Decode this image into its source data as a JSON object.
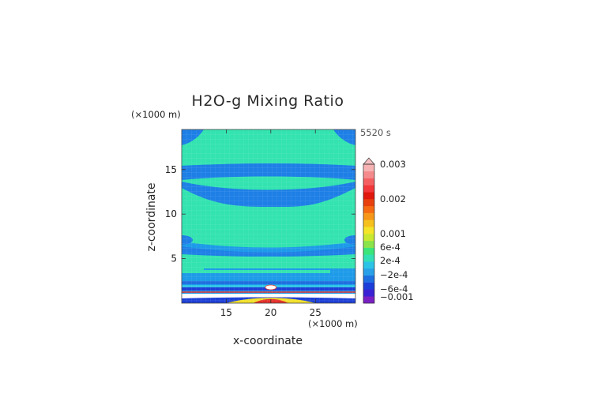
{
  "chart_data": {
    "type": "heatmap",
    "title": "H2O-g Mixing Ratio",
    "time_label": "5520 s",
    "xlabel": "x-coordinate",
    "ylabel": "z-coordinate",
    "x_units": "(×1000 m)",
    "y_units": "(×1000 m)",
    "xlim": [
      10,
      29.5
    ],
    "ylim": [
      0,
      19.5
    ],
    "x_ticks": [
      15,
      20,
      25
    ],
    "y_ticks": [
      5,
      10,
      15
    ],
    "colorbar": {
      "tick_labels": [
        {
          "value": 0.003,
          "label": "0.003"
        },
        {
          "value": 0.002,
          "label": "0.002"
        },
        {
          "value": 0.001,
          "label": "0.001"
        },
        {
          "value": 0.0006,
          "label": "6e-4"
        },
        {
          "value": 0.0002,
          "label": "2e-4"
        },
        {
          "value": -0.0002,
          "label": "−2e-4"
        },
        {
          "value": -0.0006,
          "label": "−6e-4"
        },
        {
          "value": -0.001,
          "label": "−0.001"
        }
      ],
      "bands": [
        "#7a1fc4",
        "#3a22d4",
        "#1b3ed8",
        "#1e6fe0",
        "#2aa0e8",
        "#2cc3e6",
        "#32e0b4",
        "#3be57a",
        "#8be34a",
        "#c9e832",
        "#f4e42a",
        "#f6c11e",
        "#f7971a",
        "#f56a12",
        "#e8400e",
        "#e0180e",
        "#f2383a",
        "#f46062",
        "#f58a8c",
        "#f7b2b4"
      ],
      "extend_top_color": "#f7c0c2"
    },
    "field_colors": {
      "background": "#1e9be8",
      "band_light": "#33e3b0",
      "band_dark": "#1e7fe6",
      "surface_white": "#ffffff",
      "surface_red": "#e3302a",
      "surface_yellow": "#f2e02a",
      "surface_blue": "#1d3fd6"
    }
  }
}
